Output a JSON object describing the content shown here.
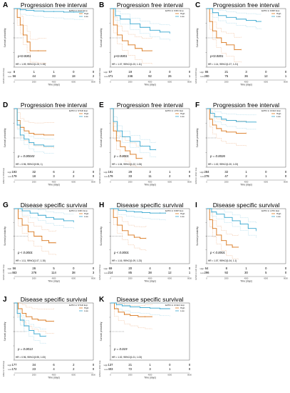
{
  "figure": {
    "colors": {
      "high": "#d9761b",
      "low": "#36a6cf",
      "high_ci": "#e89b63",
      "low_ci": "#7fc6e0",
      "axis": "#333333"
    },
    "legend_labels": [
      "High",
      "Low"
    ],
    "x_axis_label": "Time (days)",
    "y_axis_label": "Survival probability",
    "x_ticks": [
      0,
      2000,
      4000,
      6000,
      8000
    ]
  },
  "chart_data": [
    {
      "type": "line",
      "panel": "A",
      "title": "Progression free interval",
      "legend_title": "EZH2 in KICH Exp",
      "pvalue": "p<0.0001",
      "hr_text": "HR = 1.09, 95%CI(1.04, 1.15)",
      "risk_label": "EZH2 in KICH Exp",
      "ylim": [
        0,
        1
      ],
      "xlim": [
        0,
        8000
      ],
      "risk_table": {
        "High": [
          8,
          1,
          1,
          0,
          0
        ],
        "Low": [
          56,
          44,
          33,
          18,
          2
        ]
      },
      "series": [
        {
          "name": "High",
          "x": [
            0,
            300,
            600,
            900,
            1300,
            1600,
            2400,
            3200
          ],
          "y": [
            1.0,
            0.85,
            0.72,
            0.55,
            0.43,
            0.28,
            0.28,
            0.28
          ]
        },
        {
          "name": "Low",
          "x": [
            0,
            600,
            1200,
            2000,
            3000,
            4000,
            5000,
            6000,
            7000
          ],
          "y": [
            1.0,
            0.98,
            0.97,
            0.96,
            0.95,
            0.95,
            0.94,
            0.94,
            0.94
          ]
        }
      ]
    },
    {
      "type": "line",
      "panel": "B",
      "title": "Progression free interval",
      "legend_title": "EZH2 in KIRC Exp",
      "pvalue": "p<0.0001",
      "hr_text": "HR = 1.07, 95%CI(1.03, 1.11)",
      "risk_label": "EZH2 in KIRC Exp",
      "ylim": [
        0,
        1
      ],
      "xlim": [
        0,
        8000
      ],
      "risk_table": {
        "High": [
          57,
          19,
          3,
          0,
          0
        ],
        "Low": [
          471,
          246,
          92,
          26,
          1
        ]
      },
      "series": [
        {
          "name": "High",
          "x": [
            0,
            300,
            700,
            1200,
            1800,
            2500,
            3200,
            4200
          ],
          "y": [
            1.0,
            0.72,
            0.55,
            0.45,
            0.38,
            0.32,
            0.28,
            0.28
          ]
        },
        {
          "name": "Low",
          "x": [
            0,
            500,
            1000,
            2000,
            3000,
            4000,
            5000,
            6000
          ],
          "y": [
            1.0,
            0.88,
            0.82,
            0.74,
            0.68,
            0.63,
            0.6,
            0.58
          ]
        }
      ]
    },
    {
      "type": "line",
      "panel": "C",
      "title": "Progression free interval",
      "legend_title": "EZH2 in KIRP Exp",
      "pvalue": "p<0.0001",
      "hr_text": "HR = 1.14, 95%CI(1.07, 1.21)",
      "risk_label": "EZH2 in KIRP Exp",
      "ylim": [
        0,
        1
      ],
      "xlim": [
        0,
        8000
      ],
      "risk_table": {
        "High": [
          86,
          21,
          3,
          0,
          0
        ],
        "Low": [
          200,
          75,
          36,
          12,
          1
        ]
      },
      "series": [
        {
          "name": "High",
          "x": [
            0,
            300,
            600,
            1000,
            1500,
            2000,
            2800,
            3500
          ],
          "y": [
            1.0,
            0.78,
            0.62,
            0.5,
            0.42,
            0.38,
            0.3,
            0.3
          ]
        },
        {
          "name": "Low",
          "x": [
            0,
            600,
            1200,
            2000,
            3000,
            4000,
            5000,
            5500
          ],
          "y": [
            1.0,
            0.93,
            0.88,
            0.85,
            0.82,
            0.8,
            0.78,
            0.78
          ]
        }
      ]
    },
    {
      "type": "line",
      "panel": "D",
      "title": "Progression free interval",
      "legend_title": "EZH2 in STAD Exp",
      "pvalue": "p = 0.00043",
      "hr_text": "HR = 0.96, 95%CI(0.96, 1)",
      "risk_label": "EZH2 in STAD Exp",
      "ylim": [
        0,
        1
      ],
      "xlim": [
        0,
        8000
      ],
      "risk_table": {
        "High": [
          193,
          32,
          6,
          2,
          0
        ],
        "Low": [
          179,
          18,
          3,
          2,
          0
        ]
      },
      "series": [
        {
          "name": "High",
          "x": [
            0,
            300,
            600,
            1000,
            1500,
            2000,
            3000,
            4000
          ],
          "y": [
            1.0,
            0.8,
            0.68,
            0.62,
            0.58,
            0.56,
            0.55,
            0.55
          ]
        },
        {
          "name": "Low",
          "x": [
            0,
            300,
            600,
            1000,
            1500,
            2000,
            3000,
            4000
          ],
          "y": [
            1.0,
            0.72,
            0.55,
            0.48,
            0.42,
            0.38,
            0.36,
            0.36
          ]
        }
      ]
    },
    {
      "type": "line",
      "panel": "E",
      "title": "Progression free interval",
      "legend_title": "EZH2 in LIHC Exp",
      "pvalue": "p = 0.0001",
      "hr_text": "HR = 1.04, 95%CI(1.02, 1.06)",
      "risk_label": "EZH2 in LIHC Exp",
      "ylim": [
        0,
        1
      ],
      "xlim": [
        0,
        8000
      ],
      "risk_table": {
        "High": [
          191,
          29,
          3,
          1,
          0
        ],
        "Low": [
          179,
          33,
          11,
          2,
          0
        ]
      },
      "series": [
        {
          "name": "High",
          "x": [
            0,
            300,
            600,
            1000,
            1500,
            2000,
            2600,
            3200
          ],
          "y": [
            1.0,
            0.62,
            0.45,
            0.35,
            0.28,
            0.22,
            0.15,
            0.15
          ]
        },
        {
          "name": "Low",
          "x": [
            0,
            300,
            700,
            1200,
            2000,
            3000,
            4000,
            4600
          ],
          "y": [
            1.0,
            0.78,
            0.62,
            0.52,
            0.44,
            0.36,
            0.3,
            0.3
          ]
        }
      ]
    },
    {
      "type": "line",
      "panel": "F",
      "title": "Progression free interval",
      "legend_title": "EZH2 in UCEC Exp",
      "pvalue": "p = 0.0026",
      "hr_text": "HR = 1.02, 95%CI(1.00, 1.03)",
      "risk_label": "EZH2 in UCEC Exp",
      "ylim": [
        0,
        1
      ],
      "xlim": [
        0,
        8000
      ],
      "risk_table": {
        "High": [
          284,
          32,
          1,
          0,
          0
        ],
        "Low": [
          278,
          47,
          2,
          1,
          0
        ]
      },
      "series": [
        {
          "name": "High",
          "x": [
            0,
            300,
            600,
            1000,
            1500,
            2000,
            3000,
            4000
          ],
          "y": [
            1.0,
            0.82,
            0.72,
            0.66,
            0.62,
            0.6,
            0.58,
            0.58
          ]
        },
        {
          "name": "Low",
          "x": [
            0,
            400,
            800,
            1500,
            2000,
            3000,
            4000,
            5000
          ],
          "y": [
            1.0,
            0.92,
            0.86,
            0.82,
            0.8,
            0.78,
            0.77,
            0.77
          ]
        }
      ]
    },
    {
      "type": "line",
      "panel": "G",
      "title": "Disease specific survival",
      "legend_title": "EZH2 in KIRC Exp",
      "pvalue": "p < 0.0001",
      "hr_text": "HR = 1.11, 95%CI(1.07, 1.15)",
      "risk_label": "EZH2 in KIRC Exp",
      "ylim": [
        0,
        1
      ],
      "xlim": [
        0,
        8000
      ],
      "risk_table": {
        "High": [
          56,
          26,
          5,
          0,
          0
        ],
        "Low": [
          463,
          276,
          114,
          38,
          3
        ]
      },
      "series": [
        {
          "name": "High",
          "x": [
            0,
            400,
            800,
            1400,
            2000,
            2800,
            3500,
            4200
          ],
          "y": [
            1.0,
            0.82,
            0.7,
            0.58,
            0.5,
            0.42,
            0.38,
            0.38
          ]
        },
        {
          "name": "Low",
          "x": [
            0,
            800,
            1600,
            2400,
            3200,
            4000,
            5000,
            6000
          ],
          "y": [
            1.0,
            0.96,
            0.92,
            0.88,
            0.84,
            0.81,
            0.78,
            0.76
          ]
        }
      ]
    },
    {
      "type": "line",
      "panel": "H",
      "title": "Disease specific survival",
      "legend_title": "EZH2 in KIRP Exp",
      "pvalue": "p < 0.0001",
      "hr_text": "HR = 1.16, 95%CI(1.09, 1.23)",
      "risk_label": "EZH2 in KIRP Exp",
      "ylim": [
        0,
        1
      ],
      "xlim": [
        0,
        8000
      ],
      "risk_table": {
        "High": [
          69,
          20,
          4,
          0,
          0
        ],
        "Low": [
          214,
          85,
          38,
          12,
          1
        ]
      },
      "series": [
        {
          "name": "High",
          "x": [
            0,
            300,
            700,
            1200,
            1800,
            2400,
            3000,
            3600
          ],
          "y": [
            1.0,
            0.84,
            0.7,
            0.6,
            0.52,
            0.48,
            0.46,
            0.46
          ]
        },
        {
          "name": "Low",
          "x": [
            0,
            800,
            1600,
            2400,
            3200,
            4000,
            5000,
            5600
          ],
          "y": [
            1.0,
            0.97,
            0.95,
            0.94,
            0.93,
            0.92,
            0.92,
            0.92
          ]
        }
      ]
    },
    {
      "type": "line",
      "panel": "I",
      "title": "Disease specific survival",
      "legend_title": "EZH2 in LIHC Exp",
      "pvalue": "p < 0.0001",
      "hr_text": "HR = 1.07, 95%CI(1.04, 1.1)",
      "risk_label": "EZH2 in LIHC Exp",
      "ylim": [
        0,
        1
      ],
      "xlim": [
        0,
        8000
      ],
      "risk_table": {
        "High": [
          64,
          8,
          1,
          0,
          0
        ],
        "Low": [
          296,
          92,
          30,
          5,
          0
        ]
      },
      "series": [
        {
          "name": "High",
          "x": [
            0,
            300,
            600,
            1000,
            1500,
            2000,
            2600,
            3200
          ],
          "y": [
            1.0,
            0.8,
            0.64,
            0.52,
            0.42,
            0.34,
            0.3,
            0.3
          ]
        },
        {
          "name": "Low",
          "x": [
            0,
            500,
            1000,
            1800,
            2600,
            3400,
            4200,
            5000
          ],
          "y": [
            1.0,
            0.94,
            0.9,
            0.84,
            0.78,
            0.72,
            0.64,
            0.6
          ]
        }
      ]
    },
    {
      "type": "line",
      "panel": "J",
      "title": "Disease specific survival",
      "legend_title": "EZH2 in STAD Exp",
      "pvalue": "p = 0.0013",
      "hr_text": "HR = 0.96, 95%CI(0.95, 1.00)",
      "risk_label": "EZH2 in STAD Exp",
      "ylim": [
        0,
        1
      ],
      "xlim": [
        0,
        8000
      ],
      "risk_table": {
        "High": [
          177,
          34,
          6,
          2,
          0
        ],
        "Low": [
          172,
          23,
          4,
          2,
          0
        ]
      },
      "series": [
        {
          "name": "High",
          "x": [
            0,
            400,
            800,
            1200,
            1800,
            2400,
            3200,
            4000
          ],
          "y": [
            1.0,
            0.9,
            0.82,
            0.76,
            0.72,
            0.7,
            0.68,
            0.68
          ]
        },
        {
          "name": "Low",
          "x": [
            0,
            300,
            600,
            1000,
            1500,
            2000,
            2600,
            3200
          ],
          "y": [
            1.0,
            0.82,
            0.7,
            0.6,
            0.52,
            0.46,
            0.42,
            0.42
          ]
        }
      ]
    },
    {
      "type": "line",
      "panel": "K",
      "title": "Disease specific survival",
      "legend_title": "EZH2 in UCEC Exp",
      "pvalue": "p = 0.019",
      "hr_text": "HR = 1.02, 95%CI(1.01, 1.03)",
      "risk_label": "EZH2 in UCEC Exp",
      "ylim": [
        0,
        1
      ],
      "xlim": [
        0,
        8000
      ],
      "risk_table": {
        "High": [
          137,
          21,
          1,
          0,
          0
        ],
        "Low": [
          403,
          72,
          3,
          1,
          0
        ]
      },
      "series": [
        {
          "name": "High",
          "x": [
            0,
            400,
            800,
            1400,
            2000,
            2800,
            3500,
            4200
          ],
          "y": [
            1.0,
            0.9,
            0.84,
            0.8,
            0.78,
            0.76,
            0.76,
            0.76
          ]
        },
        {
          "name": "Low",
          "x": [
            0,
            600,
            1200,
            2000,
            3000,
            4000,
            5000,
            6000
          ],
          "y": [
            1.0,
            0.97,
            0.95,
            0.93,
            0.92,
            0.91,
            0.9,
            0.9
          ]
        }
      ]
    }
  ]
}
